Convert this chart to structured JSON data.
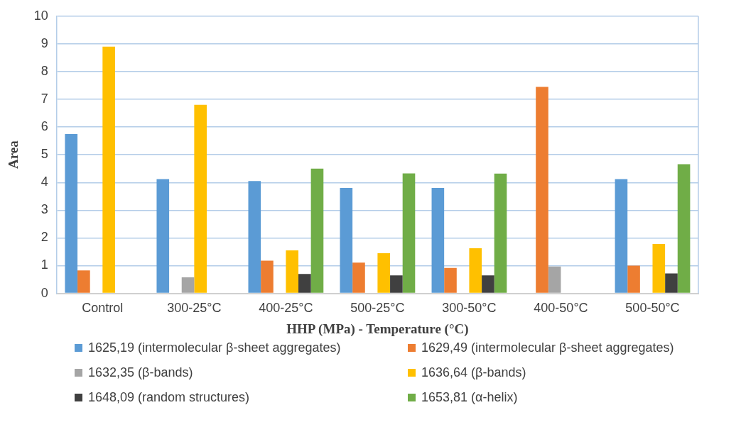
{
  "chart_data": {
    "type": "bar",
    "xlabel": "HHP (MPa) - Temperature (°C)",
    "ylabel": "Area",
    "categories": [
      "Control",
      "300-25°C",
      "400-25°C",
      "500-25°C",
      "300-50°C",
      "400-50°C",
      "500-50°C"
    ],
    "series": [
      {
        "name": "1625,19 (intermolecular β-sheet aggregates)",
        "color": "#5b9bd5",
        "values": [
          5.75,
          4.12,
          4.05,
          3.8,
          3.8,
          null,
          4.12
        ]
      },
      {
        "name": "1629,49 (intermolecular β-sheet aggregates)",
        "color": "#ed7d31",
        "values": [
          0.83,
          null,
          1.18,
          1.11,
          0.92,
          7.45,
          1.0
        ]
      },
      {
        "name": "1632,35 (β-bands)",
        "color": "#a5a5a5",
        "values": [
          null,
          0.58,
          null,
          null,
          null,
          0.97,
          null
        ]
      },
      {
        "name": "1636,64 (β-bands)",
        "color": "#ffc000",
        "values": [
          8.9,
          6.8,
          1.55,
          1.45,
          1.63,
          null,
          1.78
        ]
      },
      {
        "name": "1648,09 (random structures)",
        "color": "#404040",
        "values": [
          null,
          null,
          0.7,
          0.65,
          0.65,
          null,
          0.72
        ]
      },
      {
        "name": "1653,81 (α-helix)",
        "color": "#70ad47",
        "values": [
          null,
          null,
          4.5,
          4.33,
          4.32,
          null,
          4.66
        ]
      }
    ],
    "ylim": [
      0,
      10
    ],
    "yticks": [
      0,
      1,
      2,
      3,
      4,
      5,
      6,
      7,
      8,
      9,
      10
    ],
    "grid": "y",
    "legend": "bottom"
  }
}
